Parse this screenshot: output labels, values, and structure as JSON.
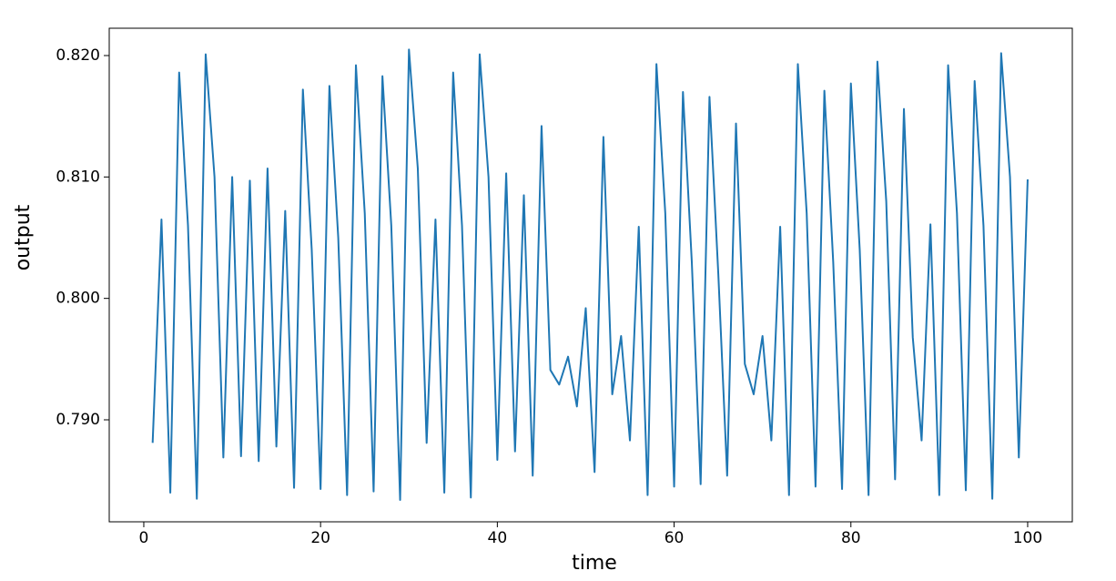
{
  "chart_data": {
    "type": "line",
    "x_label": "time",
    "y_label": "output",
    "x": [
      1,
      2,
      3,
      4,
      5,
      6,
      7,
      8,
      9,
      10,
      11,
      12,
      13,
      14,
      15,
      16,
      17,
      18,
      19,
      20,
      21,
      22,
      23,
      24,
      25,
      26,
      27,
      28,
      29,
      30,
      31,
      32,
      33,
      34,
      35,
      36,
      37,
      38,
      39,
      40,
      41,
      42,
      43,
      44,
      45,
      46,
      47,
      48,
      49,
      50,
      51,
      52,
      53,
      54,
      55,
      56,
      57,
      58,
      59,
      60,
      61,
      62,
      63,
      64,
      65,
      66,
      67,
      68,
      69,
      70,
      71,
      72,
      73,
      74,
      75,
      76,
      77,
      78,
      79,
      80,
      81,
      82,
      83,
      84,
      85,
      86,
      87,
      88,
      89,
      90,
      91,
      92,
      93,
      94,
      95,
      96,
      97,
      98,
      99,
      100
    ],
    "series": [
      {
        "name": "output",
        "color": "#1f77b4",
        "values": [
          0.7881,
          0.8065,
          0.784,
          0.8186,
          0.806,
          0.7835,
          0.8201,
          0.81,
          0.7869,
          0.81,
          0.787,
          0.8097,
          0.7866,
          0.8107,
          0.7878,
          0.8072,
          0.7844,
          0.8172,
          0.804,
          0.7843,
          0.8175,
          0.805,
          0.7838,
          0.8192,
          0.807,
          0.7841,
          0.8183,
          0.806,
          0.7834,
          0.8205,
          0.8107,
          0.7881,
          0.8065,
          0.784,
          0.8186,
          0.806,
          0.7836,
          0.8201,
          0.81,
          0.7867,
          0.8103,
          0.7874,
          0.8085,
          0.7854,
          0.8142,
          0.7941,
          0.7929,
          0.7952,
          0.7911,
          0.7992,
          0.7857,
          0.8133,
          0.7921,
          0.7969,
          0.7883,
          0.8059,
          0.7838,
          0.8193,
          0.807,
          0.7845,
          0.817,
          0.803,
          0.7847,
          0.8166,
          0.802,
          0.7854,
          0.8144,
          0.7946,
          0.7921,
          0.7969,
          0.7883,
          0.8059,
          0.7838,
          0.8193,
          0.807,
          0.7845,
          0.8171,
          0.803,
          0.7843,
          0.8177,
          0.804,
          0.7838,
          0.8195,
          0.808,
          0.7851,
          0.8156,
          0.7968,
          0.7883,
          0.8061,
          0.7838,
          0.8192,
          0.807,
          0.7842,
          0.8179,
          0.806,
          0.7835,
          0.8202,
          0.81,
          0.7869,
          0.8098
        ]
      }
    ],
    "xlim": [
      -3.91,
      105.05
    ],
    "xticks": [
      0,
      20,
      40,
      60,
      80,
      100
    ],
    "ylim": [
      0.7816,
      0.82225
    ],
    "yticks": [
      {
        "value": 0.79,
        "label": "0.790"
      },
      {
        "value": 0.8,
        "label": "0.800"
      },
      {
        "value": 0.81,
        "label": "0.810"
      },
      {
        "value": 0.82,
        "label": "0.820"
      }
    ],
    "grid": false
  }
}
